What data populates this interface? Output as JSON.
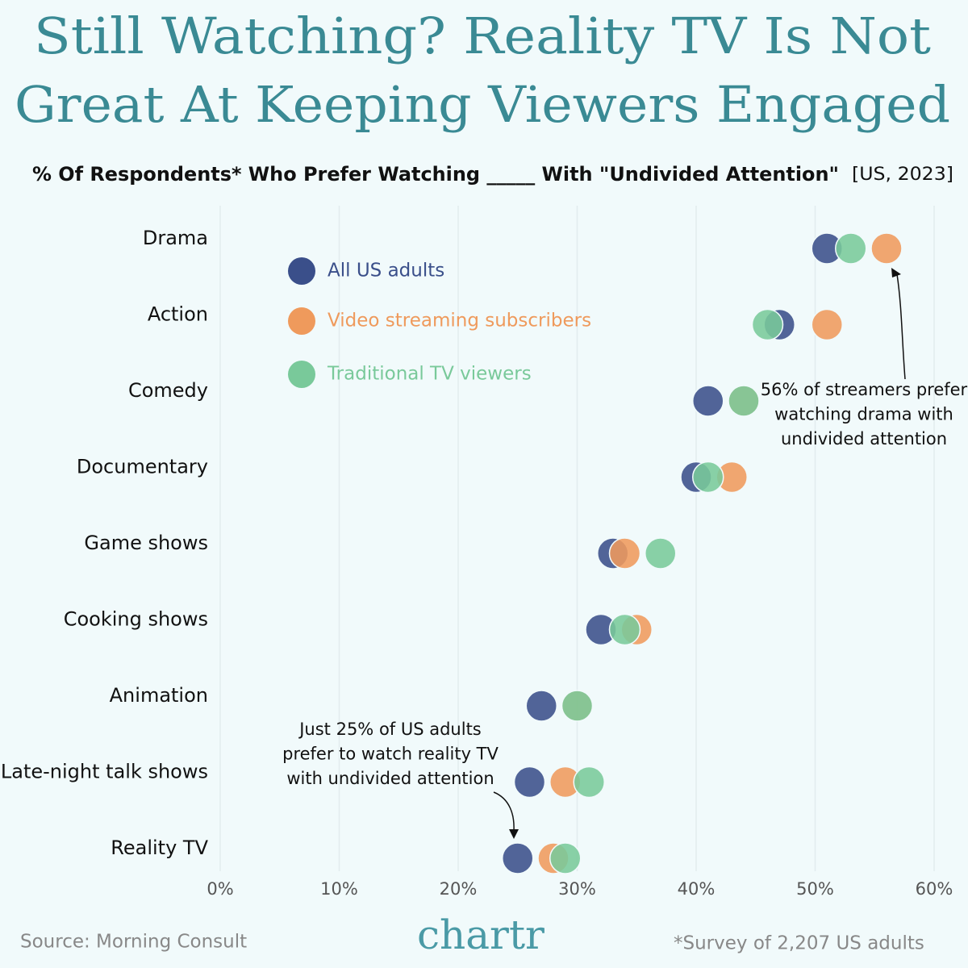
{
  "chart_data": {
    "type": "dot",
    "title": [
      "Still Watching? Reality TV Is Not",
      "Great At Keeping Viewers Engaged"
    ],
    "subtitle": "% Of Respondents* Who Prefer Watching _____ With \"Undivided Attention\"",
    "subtitle_note": "[US, 2023]",
    "categories": [
      "Drama",
      "Action",
      "Comedy",
      "Documentary",
      "Game shows",
      "Cooking shows",
      "Animation",
      "Late-night talk shows",
      "Reality TV"
    ],
    "series": [
      {
        "name": "All US adults",
        "color": "#3a4f8a",
        "values": [
          51,
          47,
          41,
          40,
          33,
          32,
          27,
          26,
          25
        ]
      },
      {
        "name": "Video streaming subscribers",
        "color": "#ef9a5c",
        "values": [
          56,
          51,
          44,
          43,
          34,
          35,
          30,
          29,
          28
        ]
      },
      {
        "name": "Traditional TV viewers",
        "color": "#79c99a",
        "values": [
          53,
          46,
          44,
          41,
          37,
          34,
          30,
          31,
          29
        ]
      }
    ],
    "xlim": [
      0,
      60
    ],
    "xticks": [
      {
        "value": 0,
        "label": "0%"
      },
      {
        "value": 10,
        "label": "10%"
      },
      {
        "value": 20,
        "label": "20%"
      },
      {
        "value": 30,
        "label": "30%"
      },
      {
        "value": 40,
        "label": "40%"
      },
      {
        "value": 50,
        "label": "50%"
      },
      {
        "value": 60,
        "label": "60%"
      }
    ],
    "grid": true,
    "legend": "top-left",
    "annotations": [
      {
        "lines": [
          "56% of streamers prefer",
          "watching drama with",
          "undivided attention"
        ]
      },
      {
        "lines": [
          "Just 25% of US adults",
          "prefer to watch reality TV",
          "with undivided attention"
        ]
      }
    ],
    "source": "Source: Morning Consult",
    "brand": "chartr",
    "footnote": "*Survey of 2,207 US adults"
  }
}
